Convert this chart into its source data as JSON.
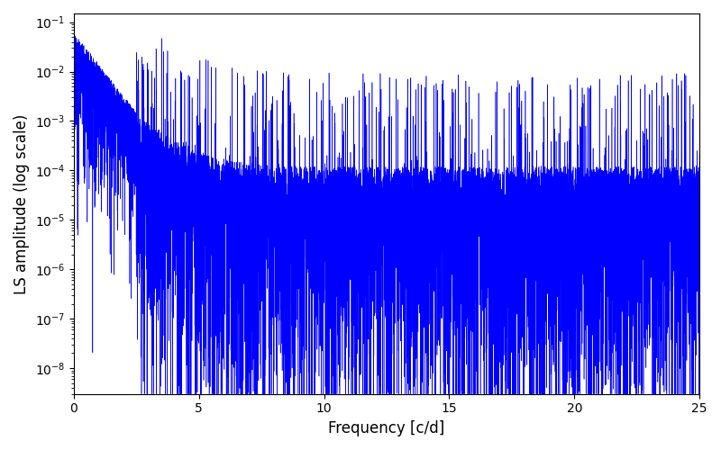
{
  "xlabel": "Frequency [c/d]",
  "ylabel": "LS amplitude (log scale)",
  "line_color": "blue",
  "xlim": [
    0,
    25
  ],
  "ylim": [
    3e-09,
    0.15
  ],
  "n_points": 10000,
  "freq_max": 25.0,
  "seed": 7,
  "background_color": "#ffffff",
  "figure_size": [
    8.0,
    5.0
  ],
  "dpi": 100
}
